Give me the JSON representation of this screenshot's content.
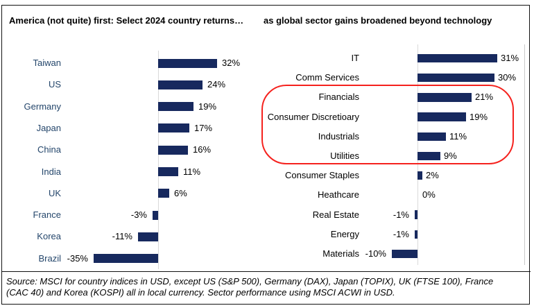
{
  "titles": {
    "left": "America (not quite) first: Select 2024 country returns…",
    "right": "as global sector gains broadened beyond technology"
  },
  "colors": {
    "bar": "#17295e",
    "left_category_text": "#24466b",
    "right_category_text": "#000000",
    "highlight": "#f5211d",
    "axis": "#d9d9d9"
  },
  "chart_data": [
    {
      "type": "bar",
      "orientation": "horizontal",
      "title": "America (not quite) first: Select 2024 country returns…",
      "categories": [
        "Taiwan",
        "US",
        "Germany",
        "Japan",
        "China",
        "India",
        "UK",
        "France",
        "Korea",
        "Brazil"
      ],
      "values": [
        32,
        24,
        19,
        17,
        16,
        11,
        6,
        -3,
        -11,
        -35
      ],
      "value_labels": [
        "32%",
        "24%",
        "19%",
        "17%",
        "16%",
        "11%",
        "6%",
        "-3%",
        "-11%",
        "-35%"
      ],
      "unit": "%",
      "xlim": [
        -40,
        45
      ],
      "grid": false,
      "bar_color": "#17295e"
    },
    {
      "type": "bar",
      "orientation": "horizontal",
      "title": "as global sector gains broadened beyond technology",
      "categories": [
        "IT",
        "Comm Services",
        "Financials",
        "Consumer Discretioary",
        "Industrials",
        "Utilities",
        "Consumer Staples",
        "Heathcare",
        "Real Estate",
        "Energy",
        "Materials"
      ],
      "values": [
        31,
        30,
        21,
        19,
        11,
        9,
        2,
        0,
        -1,
        -1,
        -10
      ],
      "value_labels": [
        "31%",
        "30%",
        "21%",
        "19%",
        "11%",
        "9%",
        "2%",
        "0%",
        "-1%",
        "-1%",
        "-10%"
      ],
      "unit": "%",
      "xlim": [
        -15,
        40
      ],
      "grid": false,
      "bar_color": "#17295e"
    }
  ],
  "annotation": {
    "type": "rounded-outline",
    "color": "#f5211d",
    "highlights": [
      "Financials",
      "Consumer Discretioary",
      "Industrials",
      "Utilities"
    ]
  },
  "source": {
    "line1": "Source: MSCI for country indices in USD, except US (S&P 500), Germany (DAX), Japan (TOPIX), UK (FTSE 100), France",
    "line2": "(CAC 40) and Korea (KOSPI) all in local currency. Sector performance using MSCI ACWI in USD."
  }
}
